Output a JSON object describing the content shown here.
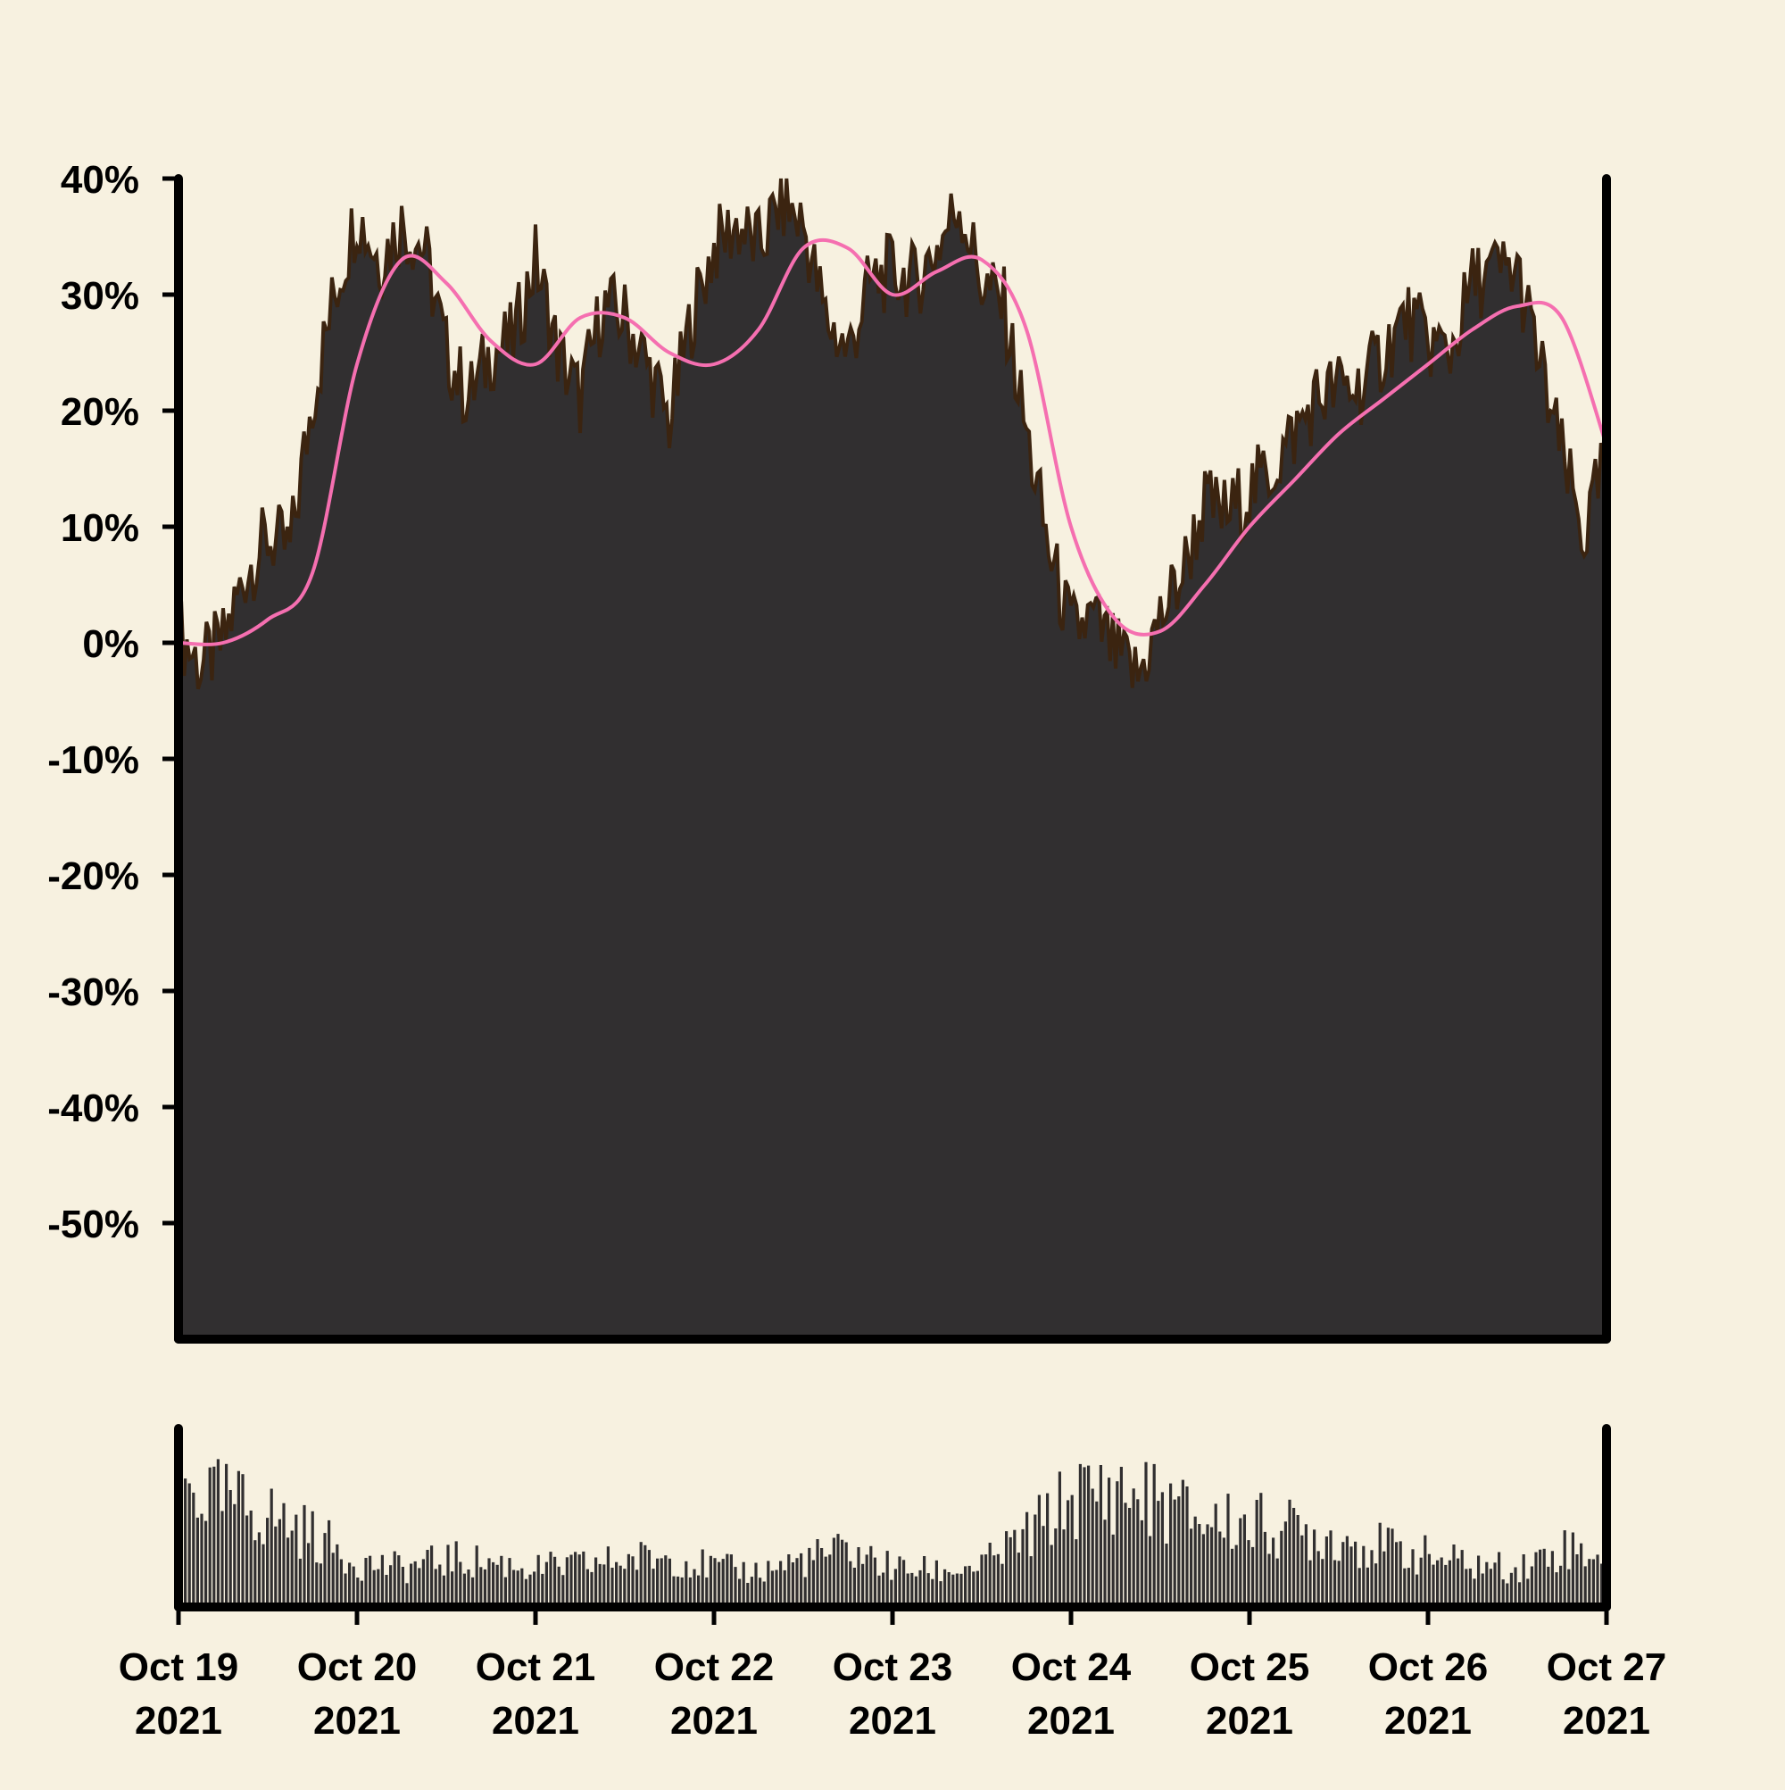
{
  "chart_data": {
    "type": "area",
    "panels": [
      "price-area",
      "volume-bars"
    ],
    "x_range": [
      "2021-10-19",
      "2021-10-27"
    ],
    "ylim": [
      -60,
      40
    ],
    "ytick_labels": [
      "40%",
      "30%",
      "20%",
      "10%",
      "0%",
      "-10%",
      "-20%",
      "-30%",
      "-40%",
      "-50%"
    ],
    "ytick_values": [
      40,
      30,
      20,
      10,
      0,
      -10,
      -20,
      -30,
      -40,
      -50
    ],
    "xtick_labels": [
      {
        "line1": "Oct 19",
        "line2": "2021"
      },
      {
        "line1": "Oct 20",
        "line2": "2021"
      },
      {
        "line1": "Oct 21",
        "line2": "2021"
      },
      {
        "line1": "Oct 22",
        "line2": "2021"
      },
      {
        "line1": "Oct 23",
        "line2": "2021"
      },
      {
        "line1": "Oct 24",
        "line2": "2021"
      },
      {
        "line1": "Oct 25",
        "line2": "2021"
      },
      {
        "line1": "Oct 26",
        "line2": "2021"
      },
      {
        "line1": "Oct 27",
        "line2": "2021"
      }
    ],
    "series": [
      {
        "role": "area",
        "color": "#312f30",
        "edge_color": "#3b2410",
        "points": [
          [
            "2021-10-19 00:00",
            1
          ],
          [
            "2021-10-19 03:00",
            -2
          ],
          [
            "2021-10-19 06:00",
            0
          ],
          [
            "2021-10-19 09:00",
            6
          ],
          [
            "2021-10-19 12:00",
            9
          ],
          [
            "2021-10-19 15:00",
            8
          ],
          [
            "2021-10-19 18:00",
            21
          ],
          [
            "2021-10-19 21:00",
            30
          ],
          [
            "2021-10-20 00:00",
            37
          ],
          [
            "2021-10-20 03:00",
            33
          ],
          [
            "2021-10-20 06:00",
            36
          ],
          [
            "2021-10-20 09:00",
            34
          ],
          [
            "2021-10-20 12:00",
            25
          ],
          [
            "2021-10-20 15:00",
            21
          ],
          [
            "2021-10-20 18:00",
            25
          ],
          [
            "2021-10-20 21:00",
            26
          ],
          [
            "2021-10-21 00:00",
            33
          ],
          [
            "2021-10-21 03:00",
            25
          ],
          [
            "2021-10-21 06:00",
            21
          ],
          [
            "2021-10-21 09:00",
            29
          ],
          [
            "2021-10-21 12:00",
            28
          ],
          [
            "2021-10-21 15:00",
            24
          ],
          [
            "2021-10-21 18:00",
            19
          ],
          [
            "2021-10-21 21:00",
            28
          ],
          [
            "2021-10-22 00:00",
            34
          ],
          [
            "2021-10-22 03:00",
            36
          ],
          [
            "2021-10-22 06:00",
            34
          ],
          [
            "2021-10-22 09:00",
            38
          ],
          [
            "2021-10-22 12:00",
            36
          ],
          [
            "2021-10-22 15:00",
            28
          ],
          [
            "2021-10-22 18:00",
            25
          ],
          [
            "2021-10-22 21:00",
            31
          ],
          [
            "2021-10-23 00:00",
            32
          ],
          [
            "2021-10-23 03:00",
            31
          ],
          [
            "2021-10-23 06:00",
            34
          ],
          [
            "2021-10-23 09:00",
            38
          ],
          [
            "2021-10-23 12:00",
            31
          ],
          [
            "2021-10-23 15:00",
            29
          ],
          [
            "2021-10-23 18:00",
            18
          ],
          [
            "2021-10-23 21:00",
            8
          ],
          [
            "2021-10-24 00:00",
            1
          ],
          [
            "2021-10-24 03:00",
            2
          ],
          [
            "2021-10-24 06:00",
            -1
          ],
          [
            "2021-10-24 09:00",
            -3
          ],
          [
            "2021-10-24 12:00",
            2
          ],
          [
            "2021-10-24 15:00",
            6
          ],
          [
            "2021-10-24 18:00",
            12
          ],
          [
            "2021-10-24 21:00",
            11
          ],
          [
            "2021-10-25 00:00",
            13
          ],
          [
            "2021-10-25 03:00",
            15
          ],
          [
            "2021-10-25 06:00",
            18
          ],
          [
            "2021-10-25 09:00",
            21
          ],
          [
            "2021-10-25 12:00",
            22
          ],
          [
            "2021-10-25 15:00",
            22
          ],
          [
            "2021-10-25 18:00",
            25
          ],
          [
            "2021-10-25 21:00",
            28
          ],
          [
            "2021-10-26 00:00",
            26
          ],
          [
            "2021-10-26 03:00",
            25
          ],
          [
            "2021-10-26 06:00",
            31
          ],
          [
            "2021-10-26 09:00",
            32
          ],
          [
            "2021-10-26 12:00",
            32
          ],
          [
            "2021-10-26 15:00",
            24
          ],
          [
            "2021-10-26 18:00",
            16
          ],
          [
            "2021-10-26 21:00",
            9
          ],
          [
            "2021-10-27 00:00",
            16
          ]
        ]
      },
      {
        "role": "moving-average",
        "color": "#f56fb0",
        "points": [
          [
            "2021-10-19 00:00",
            0
          ],
          [
            "2021-10-19 06:00",
            0
          ],
          [
            "2021-10-19 12:00",
            2
          ],
          [
            "2021-10-19 18:00",
            6
          ],
          [
            "2021-10-20 00:00",
            24
          ],
          [
            "2021-10-20 06:00",
            33
          ],
          [
            "2021-10-20 12:00",
            31
          ],
          [
            "2021-10-20 18:00",
            26
          ],
          [
            "2021-10-21 00:00",
            24
          ],
          [
            "2021-10-21 06:00",
            28
          ],
          [
            "2021-10-21 12:00",
            28
          ],
          [
            "2021-10-21 18:00",
            25
          ],
          [
            "2021-10-22 00:00",
            24
          ],
          [
            "2021-10-22 06:00",
            27
          ],
          [
            "2021-10-22 12:00",
            34
          ],
          [
            "2021-10-22 18:00",
            34
          ],
          [
            "2021-10-23 00:00",
            30
          ],
          [
            "2021-10-23 06:00",
            32
          ],
          [
            "2021-10-23 12:00",
            33
          ],
          [
            "2021-10-23 18:00",
            27
          ],
          [
            "2021-10-24 00:00",
            10
          ],
          [
            "2021-10-24 06:00",
            2
          ],
          [
            "2021-10-24 12:00",
            1
          ],
          [
            "2021-10-24 18:00",
            5
          ],
          [
            "2021-10-25 00:00",
            10
          ],
          [
            "2021-10-25 06:00",
            14
          ],
          [
            "2021-10-25 12:00",
            18
          ],
          [
            "2021-10-25 18:00",
            21
          ],
          [
            "2021-10-26 00:00",
            24
          ],
          [
            "2021-10-26 06:00",
            27
          ],
          [
            "2021-10-26 12:00",
            29
          ],
          [
            "2021-10-26 18:00",
            28
          ],
          [
            "2021-10-27 00:00",
            17
          ]
        ]
      }
    ],
    "volume": {
      "color": "#312f30",
      "values": [
        [
          "2021-10-19 00:00",
          0.8
        ],
        [
          "2021-10-19 06:00",
          0.72
        ],
        [
          "2021-10-19 12:00",
          0.62
        ],
        [
          "2021-10-19 18:00",
          0.48
        ],
        [
          "2021-10-20 00:00",
          0.3
        ],
        [
          "2021-10-20 06:00",
          0.26
        ],
        [
          "2021-10-20 12:00",
          0.32
        ],
        [
          "2021-10-20 18:00",
          0.3
        ],
        [
          "2021-10-21 00:00",
          0.26
        ],
        [
          "2021-10-21 06:00",
          0.28
        ],
        [
          "2021-10-21 12:00",
          0.32
        ],
        [
          "2021-10-21 18:00",
          0.34
        ],
        [
          "2021-10-22 00:00",
          0.26
        ],
        [
          "2021-10-22 06:00",
          0.24
        ],
        [
          "2021-10-22 12:00",
          0.32
        ],
        [
          "2021-10-22 18:00",
          0.38
        ],
        [
          "2021-10-23 00:00",
          0.26
        ],
        [
          "2021-10-23 06:00",
          0.24
        ],
        [
          "2021-10-23 12:00",
          0.28
        ],
        [
          "2021-10-23 18:00",
          0.48
        ],
        [
          "2021-10-24 00:00",
          0.74
        ],
        [
          "2021-10-24 06:00",
          0.78
        ],
        [
          "2021-10-24 12:00",
          0.7
        ],
        [
          "2021-10-24 18:00",
          0.58
        ],
        [
          "2021-10-25 00:00",
          0.56
        ],
        [
          "2021-10-25 06:00",
          0.52
        ],
        [
          "2021-10-25 12:00",
          0.46
        ],
        [
          "2021-10-25 18:00",
          0.4
        ],
        [
          "2021-10-26 00:00",
          0.34
        ],
        [
          "2021-10-26 06:00",
          0.28
        ],
        [
          "2021-10-26 12:00",
          0.26
        ],
        [
          "2021-10-26 18:00",
          0.4
        ],
        [
          "2021-10-27 00:00",
          0.36
        ]
      ]
    }
  }
}
